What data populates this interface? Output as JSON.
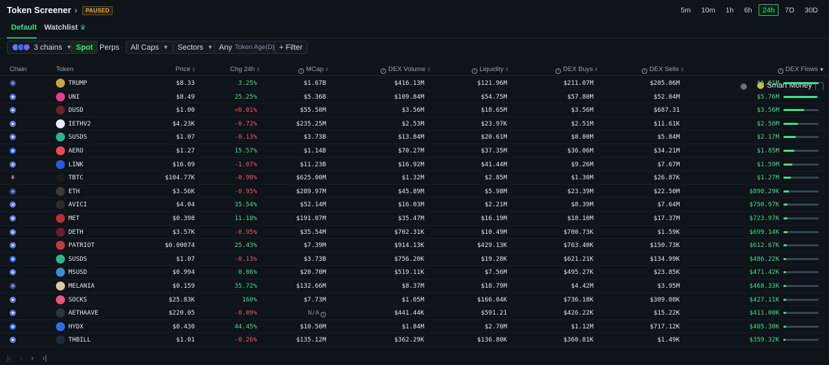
{
  "header": {
    "title": "Token Screener",
    "status": "PAUSED"
  },
  "timeframes": [
    "5m",
    "10m",
    "1h",
    "6h",
    "24h",
    "7D",
    "30D"
  ],
  "active_timeframe": "24h",
  "tabs": {
    "default": "Default",
    "watchlist": "Watchlist"
  },
  "filters": {
    "chains": "3 chains",
    "spot": "Spot",
    "perps": "Perps",
    "caps": "All Caps",
    "sectors": "Sectors",
    "age_any": "Any",
    "age_label": "Token Age(D)",
    "filter": "+ Filter",
    "smart_money": "Smart Money"
  },
  "columns": {
    "chain": "Chain",
    "token": "Token",
    "price": "Price",
    "chg": "Chg 24h",
    "mcap": "MCap",
    "dex_volume": "DEX Volume",
    "liquidity": "Liquidity",
    "dex_buys": "DEX Buys",
    "dex_sells": "DEX Sells",
    "dex_flows": "DEX Flows"
  },
  "colors": {
    "accent": "#3ee08a",
    "negative": "#f25c62",
    "background": "#0f131a"
  },
  "rows": [
    {
      "chain": "solana",
      "token": "TRUMP",
      "price": "$8.33",
      "chg": "3.25%",
      "dir": "pos",
      "mcap": "$1.67B",
      "vol": "$416.13M",
      "liq": "$121.96M",
      "buys": "$211.07M",
      "sells": "$205.06M",
      "flows": "$6.01M",
      "flow_pct": 1.0,
      "icon": "#c9a54a"
    },
    {
      "chain": "ethereum",
      "token": "UNI",
      "price": "$8.49",
      "chg": "25.25%",
      "dir": "pos",
      "mcap": "$5.36B",
      "vol": "$109.84M",
      "liq": "$54.75M",
      "buys": "$57.80M",
      "sells": "$52.04M",
      "flows": "$5.76M",
      "flow_pct": 0.96,
      "icon": "#e0408f"
    },
    {
      "chain": "ethereum",
      "token": "DUSD",
      "price": "$1.00",
      "chg": "<0.01%",
      "dir": "neg",
      "mcap": "$55.58M",
      "vol": "$3.56M",
      "liq": "$18.65M",
      "buys": "$3.56M",
      "sells": "$687.31",
      "flows": "$3.56M",
      "flow_pct": 0.59,
      "icon": "#6b1f2a"
    },
    {
      "chain": "ethereum",
      "token": "IETHV2",
      "price": "$4.23K",
      "chg": "-0.72%",
      "dir": "neg",
      "mcap": "$235.25M",
      "vol": "$2.53M",
      "liq": "$23.97K",
      "buys": "$2.51M",
      "sells": "$11.61K",
      "flows": "$2.50M",
      "flow_pct": 0.42,
      "icon": "#e8eef5"
    },
    {
      "chain": "ethereum",
      "token": "SUSDS",
      "price": "$1.07",
      "chg": "-0.13%",
      "dir": "neg",
      "mcap": "$3.73B",
      "vol": "$13.84M",
      "liq": "$20.61M",
      "buys": "$8.00M",
      "sells": "$5.84M",
      "flows": "$2.17M",
      "flow_pct": 0.36,
      "icon": "#2fb58a"
    },
    {
      "chain": "base",
      "token": "AERO",
      "price": "$1.27",
      "chg": "15.57%",
      "dir": "pos",
      "mcap": "$1.14B",
      "vol": "$70.27M",
      "liq": "$37.35M",
      "buys": "$36.06M",
      "sells": "$34.21M",
      "flows": "$1.85M",
      "flow_pct": 0.31,
      "icon": "#e84b4b"
    },
    {
      "chain": "ethereum",
      "token": "LINK",
      "price": "$16.09",
      "chg": "-1.07%",
      "dir": "neg",
      "mcap": "$11.23B",
      "vol": "$16.92M",
      "liq": "$41.44M",
      "buys": "$9.26M",
      "sells": "$7.67M",
      "flows": "$1.59M",
      "flow_pct": 0.26,
      "icon": "#2a5ada"
    },
    {
      "chain": "bsc",
      "token": "TBTC",
      "price": "$104.77K",
      "chg": "-0.98%",
      "dir": "neg",
      "mcap": "$625.00M",
      "vol": "$1.32M",
      "liq": "$2.85M",
      "buys": "$1.30M",
      "sells": "$26.87K",
      "flows": "$1.27M",
      "flow_pct": 0.21,
      "icon": "#1b1b1b"
    },
    {
      "chain": "solana",
      "token": "ETH",
      "price": "$3.56K",
      "chg": "-0.95%",
      "dir": "neg",
      "mcap": "$289.97M",
      "vol": "$45.89M",
      "liq": "$5.98M",
      "buys": "$23.39M",
      "sells": "$22.50M",
      "flows": "$890.29K",
      "flow_pct": 0.15,
      "icon": "#3a3a3a"
    },
    {
      "chain": "ethereum",
      "token": "AVICI",
      "price": "$4.04",
      "chg": "35.54%",
      "dir": "pos",
      "mcap": "$52.14M",
      "vol": "$16.03M",
      "liq": "$2.21M",
      "buys": "$8.39M",
      "sells": "$7.64M",
      "flows": "$750.97K",
      "flow_pct": 0.12,
      "icon": "#2c2c2c"
    },
    {
      "chain": "ethereum",
      "token": "MET",
      "price": "$0.398",
      "chg": "11.18%",
      "dir": "pos",
      "mcap": "$191.07M",
      "vol": "$35.47M",
      "liq": "$16.19M",
      "buys": "$18.10M",
      "sells": "$17.37M",
      "flows": "$723.97K",
      "flow_pct": 0.12,
      "icon": "#b8302e"
    },
    {
      "chain": "ethereum",
      "token": "DETH",
      "price": "$3.57K",
      "chg": "-0.95%",
      "dir": "neg",
      "mcap": "$35.54M",
      "vol": "$702.31K",
      "liq": "$10.49M",
      "buys": "$700.73K",
      "sells": "$1.59K",
      "flows": "$699.14K",
      "flow_pct": 0.12,
      "icon": "#6b1f2a"
    },
    {
      "chain": "ethereum",
      "token": "PATRIOT",
      "price": "$0.00074",
      "chg": "25.43%",
      "dir": "pos",
      "mcap": "$7.39M",
      "vol": "$914.13K",
      "liq": "$429.13K",
      "buys": "$763.40K",
      "sells": "$150.73K",
      "flows": "$612.67K",
      "flow_pct": 0.1,
      "icon": "#c23b3b"
    },
    {
      "chain": "base",
      "token": "SUSDS",
      "price": "$1.07",
      "chg": "-0.13%",
      "dir": "neg",
      "mcap": "$3.73B",
      "vol": "$756.20K",
      "liq": "$19.28K",
      "buys": "$621.21K",
      "sells": "$134.99K",
      "flows": "$486.22K",
      "flow_pct": 0.08,
      "icon": "#2fb58a"
    },
    {
      "chain": "ethereum",
      "token": "MSUSD",
      "price": "$0.994",
      "chg": "0.06%",
      "dir": "pos",
      "mcap": "$20.70M",
      "vol": "$519.11K",
      "liq": "$7.56M",
      "buys": "$495.27K",
      "sells": "$23.85K",
      "flows": "$471.42K",
      "flow_pct": 0.08,
      "icon": "#3a8fd8"
    },
    {
      "chain": "solana",
      "token": "MELANIA",
      "price": "$0.159",
      "chg": "35.72%",
      "dir": "pos",
      "mcap": "$132.66M",
      "vol": "$8.37M",
      "liq": "$18.79M",
      "buys": "$4.42M",
      "sells": "$3.95M",
      "flows": "$468.33K",
      "flow_pct": 0.08,
      "icon": "#d9c9a8"
    },
    {
      "chain": "ethereum",
      "token": "SOCKS",
      "price": "$25.83K",
      "chg": "160%",
      "dir": "pos",
      "mcap": "$7.73M",
      "vol": "$1.05M",
      "liq": "$166.04K",
      "buys": "$736.18K",
      "sells": "$309.08K",
      "flows": "$427.11K",
      "flow_pct": 0.07,
      "icon": "#e8567a"
    },
    {
      "chain": "ethereum",
      "token": "AETHAAVE",
      "price": "$220.05",
      "chg": "-0.09%",
      "dir": "neg",
      "mcap": "N/A",
      "vol": "$441.44K",
      "liq": "$591.21",
      "buys": "$426.22K",
      "sells": "$15.22K",
      "flows": "$411.00K",
      "flow_pct": 0.07,
      "icon": "#2b3440"
    },
    {
      "chain": "base",
      "token": "HYDX",
      "price": "$0.430",
      "chg": "44.45%",
      "dir": "pos",
      "mcap": "$10.50M",
      "vol": "$1.84M",
      "liq": "$2.70M",
      "buys": "$1.12M",
      "sells": "$717.12K",
      "flows": "$405.30K",
      "flow_pct": 0.07,
      "icon": "#2b6fe8"
    },
    {
      "chain": "ethereum",
      "token": "THBILL",
      "price": "$1.01",
      "chg": "-0.26%",
      "dir": "neg",
      "mcap": "$135.12M",
      "vol": "$362.29K",
      "liq": "$136.80K",
      "buys": "$360.81K",
      "sells": "$1.49K",
      "flows": "$359.32K",
      "flow_pct": 0.06,
      "icon": "#1d2a3a"
    }
  ]
}
